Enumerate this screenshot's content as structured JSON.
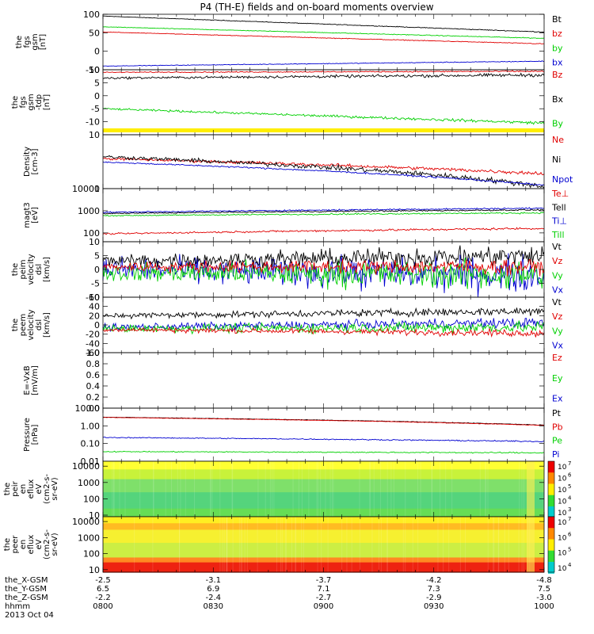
{
  "title": "P4 (TH-E) fields and on-board moments overview",
  "colors": {
    "black": "#000000",
    "red": "#e00000",
    "green": "#00d000",
    "blue": "#0000d0"
  },
  "panels": [
    {
      "id": "fgs_gsm",
      "ylabel": [
        "the",
        "fgs",
        "gsm",
        "[nT]"
      ],
      "ylim": [
        -50,
        100
      ],
      "scale": "linear",
      "yticks": [
        -50,
        0,
        50,
        100
      ],
      "ytick_labels": [
        "-50",
        "0",
        "50",
        "100"
      ],
      "series": [
        {
          "name": "Bt",
          "color": "black",
          "start": 95,
          "end": 52,
          "noise": 0.6
        },
        {
          "name": "bz",
          "color": "red",
          "start": 52,
          "end": 20,
          "noise": 0.6
        },
        {
          "name": "by",
          "color": "green",
          "start": 66,
          "end": 35,
          "noise": 0.6
        },
        {
          "name": "bx",
          "color": "blue",
          "start": -40,
          "end": -27,
          "noise": 0.6
        }
      ],
      "legend": [
        "Bt",
        "bz",
        "by",
        "bx"
      ]
    },
    {
      "id": "fgs_gsm_tdp",
      "ylabel": [
        "the",
        "fgs",
        "gsm",
        "-tdp",
        "[nT]"
      ],
      "ylim": [
        -15,
        10
      ],
      "scale": "linear",
      "yticks": [
        -10,
        -5,
        0,
        5,
        10
      ],
      "ytick_labels": [
        "-10",
        "-5",
        "0",
        "5",
        "10"
      ],
      "series": [
        {
          "name": "Bx",
          "color": "black",
          "start": 6.8,
          "end": 8.0,
          "noise": 0.35
        },
        {
          "name": "Bz",
          "color": "red",
          "start": 9.0,
          "end": 9.4,
          "noise": 0.15
        },
        {
          "name": "By",
          "color": "green",
          "start": -5.0,
          "end": -10.5,
          "noise": 0.3
        }
      ],
      "legend": [
        "Bz",
        "Bx",
        "By"
      ],
      "flag_bar": {
        "color": "#ffee00"
      }
    },
    {
      "id": "density",
      "ylabel": [
        "Density",
        "[cm-3]"
      ],
      "ylim": [
        1,
        10
      ],
      "scale": "log",
      "yticks": [
        1,
        10
      ],
      "ytick_labels": [
        "1",
        "10"
      ],
      "series": [
        {
          "name": "Ne",
          "color": "red",
          "start": 3.6,
          "end": 1.9,
          "noise": 0.02
        },
        {
          "name": "Ni",
          "color": "black",
          "start": 3.9,
          "end": 1.1,
          "noise": 0.03
        },
        {
          "name": "Npot",
          "color": "blue",
          "start": 3.1,
          "end": 1.15,
          "noise": 0.01
        }
      ],
      "legend": [
        "Ne",
        "Ni",
        "Npot"
      ]
    },
    {
      "id": "temperature",
      "ylabel": [
        "magt3",
        "[eV]"
      ],
      "ylim": [
        40,
        10000
      ],
      "scale": "log",
      "yticks": [
        100,
        1000,
        10000
      ],
      "ytick_labels": [
        "100",
        "1000",
        "10000"
      ],
      "series": [
        {
          "name": "Tell",
          "color": "black",
          "start": 750,
          "end": 1100,
          "noise": 0.02
        },
        {
          "name": "Te⊥",
          "color": "red",
          "start": 90,
          "end": 160,
          "noise": 0.03
        },
        {
          "name": "Ti⊥",
          "color": "blue",
          "start": 850,
          "end": 1300,
          "noise": 0.02
        },
        {
          "name": "Till",
          "color": "green",
          "start": 600,
          "end": 800,
          "noise": 0.02
        }
      ],
      "legend": [
        "Te⊥",
        "Tell",
        "Ti⊥",
        "Till"
      ]
    },
    {
      "id": "peim_velocity",
      "ylabel": [
        "the",
        "peim",
        "velocity",
        "dsl",
        "[km/s]"
      ],
      "ylim": [
        -10,
        10
      ],
      "scale": "linear",
      "yticks": [
        -10,
        -5,
        0,
        5,
        10
      ],
      "ytick_labels": [
        "-10",
        "-5",
        "0",
        "5",
        "10"
      ],
      "series": [
        {
          "name": "Vx",
          "color": "blue",
          "start": 0,
          "end": -2,
          "noise": 3.5
        },
        {
          "name": "Vy",
          "color": "green",
          "start": -1,
          "end": -2,
          "noise": 3.0
        },
        {
          "name": "Vt",
          "color": "black",
          "start": 3,
          "end": 5,
          "noise": 2.0
        },
        {
          "name": "Vz",
          "color": "red",
          "start": 1,
          "end": 1,
          "noise": 1.5
        }
      ],
      "legend": [
        "Vt",
        "Vz",
        "Vy",
        "Vx"
      ]
    },
    {
      "id": "peem_velocity",
      "ylabel": [
        "the",
        "peem",
        "velocity",
        "dsl",
        "[km/s]"
      ],
      "ylim": [
        -60,
        60
      ],
      "scale": "linear",
      "yticks": [
        -60,
        -40,
        -20,
        0,
        20,
        40,
        60
      ],
      "ytick_labels": [
        "-60",
        "-40",
        "-20",
        "0",
        "20",
        "40",
        "60"
      ],
      "series": [
        {
          "name": "Vx",
          "color": "blue",
          "start": -5,
          "end": 5,
          "noise": 6
        },
        {
          "name": "Vy",
          "color": "green",
          "start": -8,
          "end": -5,
          "noise": 7
        },
        {
          "name": "Vt",
          "color": "black",
          "start": 20,
          "end": 30,
          "noise": 5
        },
        {
          "name": "Vz",
          "color": "red",
          "start": -10,
          "end": -18,
          "noise": 4
        }
      ],
      "legend": [
        "Vt",
        "Vz",
        "Vy",
        "Vx"
      ]
    },
    {
      "id": "efield",
      "ylabel": [
        "E=-VxB",
        "[mV/m]"
      ],
      "ylim": [
        0,
        1
      ],
      "scale": "linear",
      "yticks": [
        0,
        0.2,
        0.4,
        0.6,
        0.8,
        1.0
      ],
      "ytick_labels": [
        "0.0",
        "0.2",
        "0.4",
        "0.6",
        "0.8",
        "1.0"
      ],
      "series": [],
      "legend": [
        "Ez",
        "Ey",
        "Ex"
      ],
      "legend_colors": [
        "red",
        "green",
        "blue"
      ]
    },
    {
      "id": "pressure",
      "ylabel": [
        "Pressure",
        "[nPa]"
      ],
      "ylim": [
        0.01,
        10
      ],
      "scale": "log",
      "yticks": [
        0.01,
        0.1,
        1,
        10
      ],
      "ytick_labels": [
        "0.01",
        "0.10",
        "1.00",
        "10.00"
      ],
      "series": [
        {
          "name": "Pt",
          "color": "black",
          "start": 3.1,
          "end": 1.1,
          "noise": 0.01
        },
        {
          "name": "Pb",
          "color": "red",
          "start": 3.0,
          "end": 1.05,
          "noise": 0.01
        },
        {
          "name": "Pi",
          "color": "blue",
          "start": 0.22,
          "end": 0.13,
          "noise": 0.02
        },
        {
          "name": "Pe",
          "color": "green",
          "start": 0.035,
          "end": 0.03,
          "noise": 0.02
        }
      ],
      "legend": [
        "Pt",
        "Pb",
        "Pe",
        "Pi"
      ]
    },
    {
      "id": "peir_en_eflux",
      "ylabel": [
        "the",
        "peir",
        "en",
        "eflux",
        "eV",
        "(cm2-s-",
        "sr-eV)"
      ],
      "ylim": [
        8,
        20000
      ],
      "scale": "log",
      "type": "spectrogram",
      "yticks": [
        10,
        100,
        1000,
        10000
      ],
      "ytick_labels": [
        "10",
        "100",
        "1000",
        "10000"
      ],
      "colorbar": {
        "labels": [
          "10",
          "10",
          "10",
          "10",
          "10"
        ],
        "exponents": [
          "3",
          "4",
          "5",
          "6",
          "7"
        ]
      }
    },
    {
      "id": "peer_en_eflux",
      "ylabel": [
        "the",
        "peer",
        "en",
        "eflux",
        "eV",
        "(cm2-s-",
        "sr-eV)"
      ],
      "ylim": [
        7,
        20000
      ],
      "scale": "log",
      "type": "spectrogram",
      "yticks": [
        10,
        100,
        1000,
        10000
      ],
      "ytick_labels": [
        "10",
        "100",
        "1000",
        "10000"
      ],
      "colorbar": {
        "labels": [
          "10",
          "10",
          "10",
          "10"
        ],
        "exponents": [
          "4",
          "5",
          "6",
          "7"
        ]
      }
    }
  ],
  "ephemeris": {
    "rows": [
      {
        "label": "the_X-GSM",
        "values": [
          "-2.5",
          "-3.1",
          "-3.7",
          "-4.2",
          "-4.8"
        ]
      },
      {
        "label": "the_Y-GSM",
        "values": [
          "6.5",
          "6.9",
          "7.1",
          "7.3",
          "7.5"
        ]
      },
      {
        "label": "the_Z-GSM",
        "values": [
          "-2.2",
          "-2.4",
          "-2.7",
          "-2.9",
          "-3.0"
        ]
      },
      {
        "label": "hhmm",
        "values": [
          "0800",
          "0830",
          "0900",
          "0930",
          "1000"
        ]
      }
    ],
    "date": "2013 Oct 04"
  },
  "chart_data": {
    "type": "line",
    "title": "P4 (TH-E) fields and on-board moments overview",
    "x_axis": {
      "label": "hhmm",
      "range": [
        "0800",
        "1000"
      ],
      "ticks": [
        "0800",
        "0830",
        "0900",
        "0930",
        "1000"
      ]
    },
    "panels": [
      {
        "ylabel": "the fgs gsm [nT]",
        "series": [
          {
            "name": "Bt",
            "values": [
              95,
              52
            ]
          },
          {
            "name": "bz",
            "values": [
              52,
              20
            ]
          },
          {
            "name": "by",
            "values": [
              66,
              35
            ]
          },
          {
            "name": "bx",
            "values": [
              -40,
              -27
            ]
          }
        ]
      },
      {
        "ylabel": "the fgs gsm -tdp [nT]",
        "series": [
          {
            "name": "Bz",
            "values": [
              9.0,
              9.4
            ]
          },
          {
            "name": "Bx",
            "values": [
              6.8,
              8.0
            ]
          },
          {
            "name": "By",
            "values": [
              -5.0,
              -10.5
            ]
          }
        ]
      },
      {
        "ylabel": "Density [cm-3]",
        "series": [
          {
            "name": "Ne",
            "values": [
              3.6,
              1.9
            ]
          },
          {
            "name": "Ni",
            "values": [
              3.9,
              1.1
            ]
          },
          {
            "name": "Npot",
            "values": [
              3.1,
              1.15
            ]
          }
        ]
      },
      {
        "ylabel": "magt3 [eV]",
        "series": [
          {
            "name": "Te⊥",
            "values": [
              90,
              160
            ]
          },
          {
            "name": "Tell",
            "values": [
              750,
              1100
            ]
          },
          {
            "name": "Ti⊥",
            "values": [
              850,
              1300
            ]
          },
          {
            "name": "Till",
            "values": [
              600,
              800
            ]
          }
        ]
      },
      {
        "ylabel": "the peim velocity dsl [km/s]",
        "series": [
          {
            "name": "Vt",
            "values": [
              3,
              5
            ]
          },
          {
            "name": "Vz",
            "values": [
              1,
              1
            ]
          },
          {
            "name": "Vy",
            "values": [
              -1,
              -2
            ]
          },
          {
            "name": "Vx",
            "values": [
              0,
              -2
            ]
          }
        ]
      },
      {
        "ylabel": "the peem velocity dsl [km/s]",
        "series": [
          {
            "name": "Vt",
            "values": [
              20,
              30
            ]
          },
          {
            "name": "Vz",
            "values": [
              -10,
              -18
            ]
          },
          {
            "name": "Vy",
            "values": [
              -8,
              -5
            ]
          },
          {
            "name": "Vx",
            "values": [
              -5,
              5
            ]
          }
        ]
      },
      {
        "ylabel": "E=-VxB [mV/m]",
        "series": []
      },
      {
        "ylabel": "Pressure [nPa]",
        "series": [
          {
            "name": "Pt",
            "values": [
              3.1,
              1.1
            ]
          },
          {
            "name": "Pb",
            "values": [
              3.0,
              1.05
            ]
          },
          {
            "name": "Pe",
            "values": [
              0.035,
              0.03
            ]
          },
          {
            "name": "Pi",
            "values": [
              0.22,
              0.13
            ]
          }
        ]
      }
    ]
  }
}
